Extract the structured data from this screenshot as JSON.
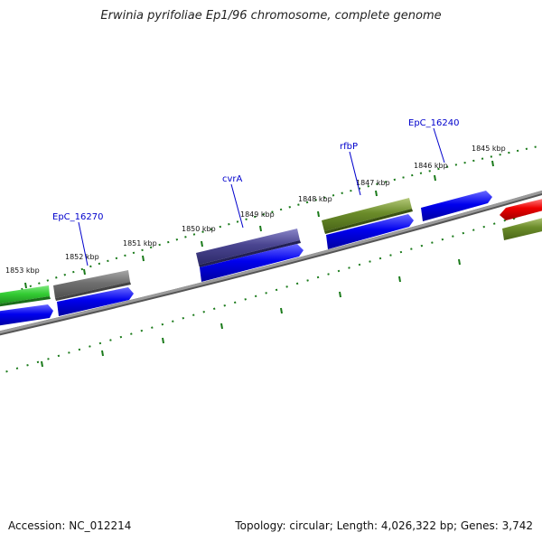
{
  "title": "Erwinia pyrifoliae Ep1/96 chromosome, complete genome",
  "footer": {
    "accession": "Accession: NC_012214",
    "summary": "Topology: circular; Length: 4,026,322 bp; Genes: 3,742"
  },
  "colors": {
    "backbone": "#808080",
    "ticks": "#1a7a1a",
    "gene_label": "#0000cc"
  },
  "ticks": [
    {
      "kbp": 1845,
      "label": "1845 kbp"
    },
    {
      "kbp": 1846,
      "label": "1846 kbp"
    },
    {
      "kbp": 1847,
      "label": "1847 kbp"
    },
    {
      "kbp": 1848,
      "label": "1848 kbp"
    },
    {
      "kbp": 1849,
      "label": "1849 kbp"
    },
    {
      "kbp": 1850,
      "label": "1850 kbp"
    },
    {
      "kbp": 1851,
      "label": "1851 kbp"
    },
    {
      "kbp": 1852,
      "label": "1852 kbp"
    },
    {
      "kbp": 1853,
      "label": "1853 kbp"
    }
  ],
  "gene_labels": [
    {
      "name": "EpC_16240"
    },
    {
      "name": "rfbP"
    },
    {
      "name": "cvrA"
    },
    {
      "name": "EpC_16270"
    }
  ]
}
